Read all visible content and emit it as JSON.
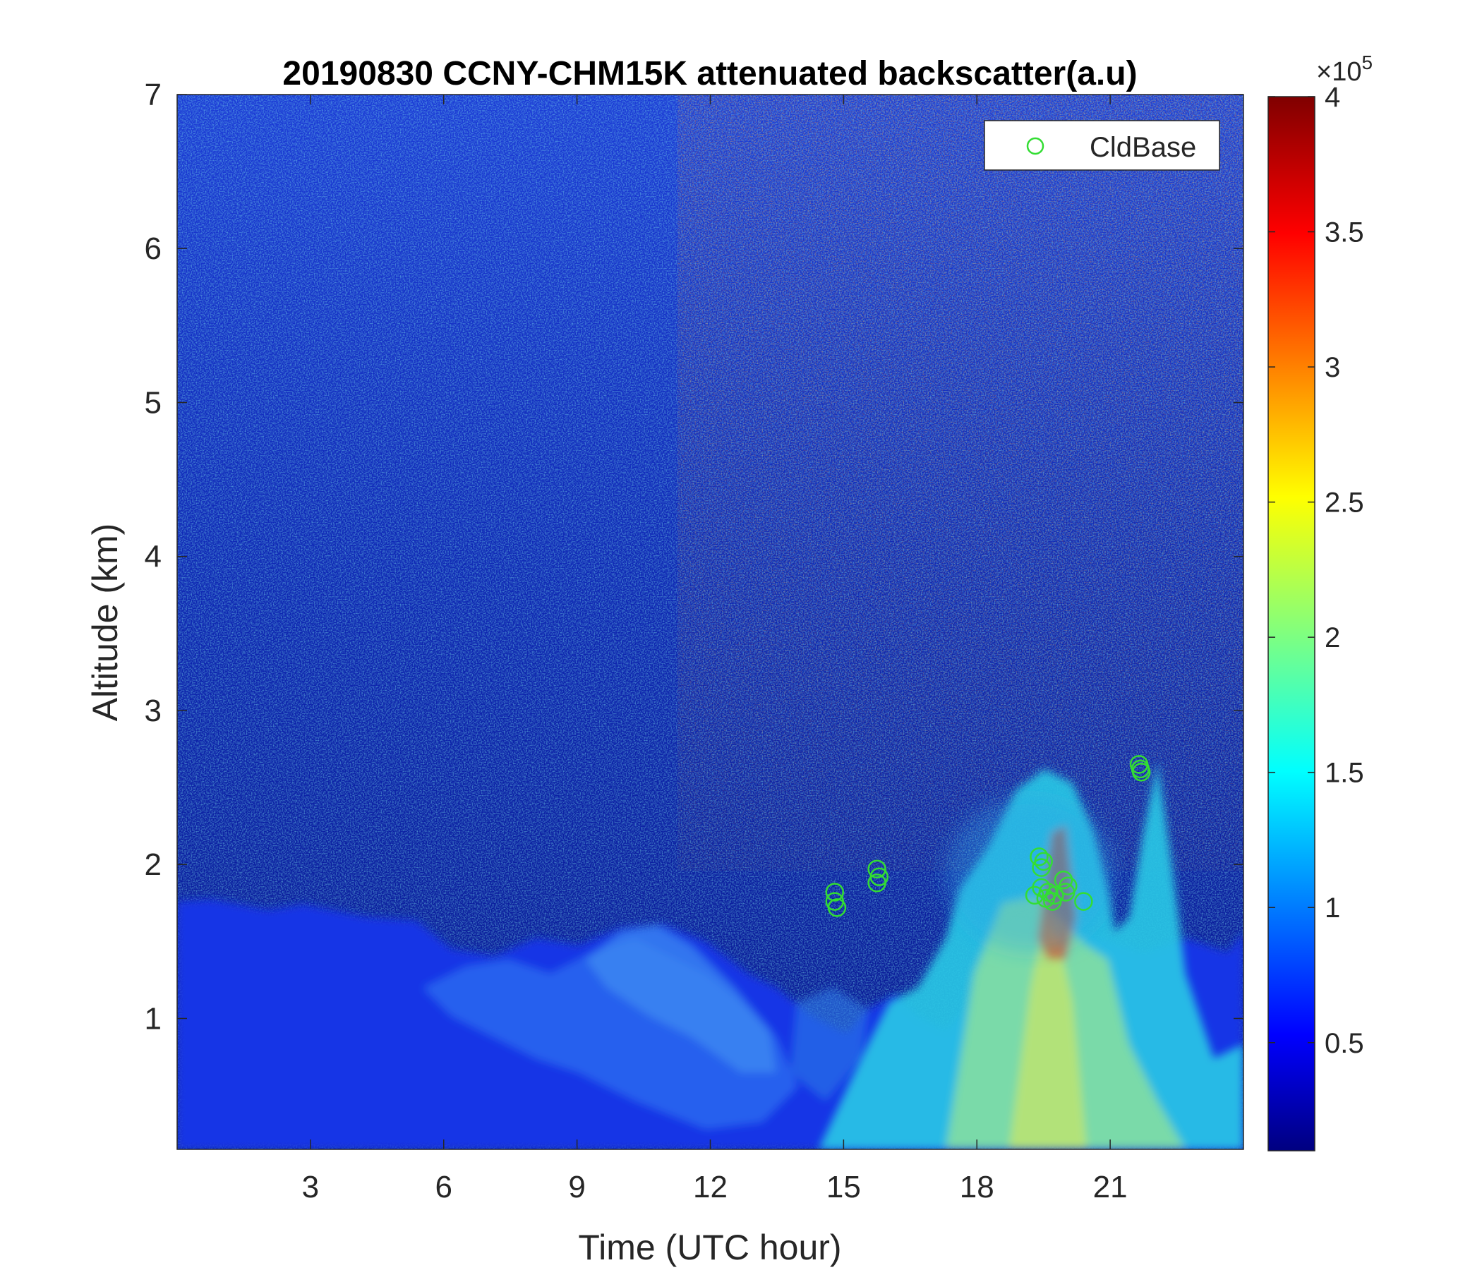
{
  "chart_data": {
    "type": "heatmap",
    "title": "20190830 CCNY-CHM15K attenuated backscatter(a.u)",
    "xlabel": "Time (UTC hour)",
    "ylabel": "Altitude (km)",
    "xlim": [
      0,
      24
    ],
    "ylim": [
      0.15,
      7
    ],
    "xticks": [
      3,
      6,
      9,
      12,
      15,
      18,
      21
    ],
    "yticks": [
      1,
      2,
      3,
      4,
      5,
      6,
      7
    ],
    "colormap": "jet",
    "colorbar": {
      "range": [
        0.1,
        4
      ],
      "ticks": [
        0.5,
        1,
        1.5,
        2,
        2.5,
        3,
        3.5,
        4
      ],
      "exponent_label": "×10",
      "exponent": "5"
    },
    "legend": {
      "entries": [
        "CldBase"
      ],
      "location": "top-right",
      "marker": "circle",
      "color": "#33dd33"
    },
    "series": [
      {
        "name": "CldBase",
        "type": "scatter",
        "points": [
          [
            14.8,
            1.82
          ],
          [
            14.8,
            1.76
          ],
          [
            14.85,
            1.72
          ],
          [
            15.75,
            1.97
          ],
          [
            15.8,
            1.92
          ],
          [
            15.75,
            1.88
          ],
          [
            19.4,
            2.05
          ],
          [
            19.45,
            1.98
          ],
          [
            19.5,
            2.02
          ],
          [
            19.3,
            1.8
          ],
          [
            19.45,
            1.85
          ],
          [
            19.55,
            1.78
          ],
          [
            19.6,
            1.82
          ],
          [
            19.7,
            1.76
          ],
          [
            19.75,
            1.8
          ],
          [
            19.95,
            1.9
          ],
          [
            20.05,
            1.86
          ],
          [
            20.0,
            1.82
          ],
          [
            20.4,
            1.76
          ],
          [
            21.65,
            2.65
          ],
          [
            21.7,
            2.6
          ],
          [
            21.68,
            2.62
          ]
        ]
      }
    ]
  }
}
